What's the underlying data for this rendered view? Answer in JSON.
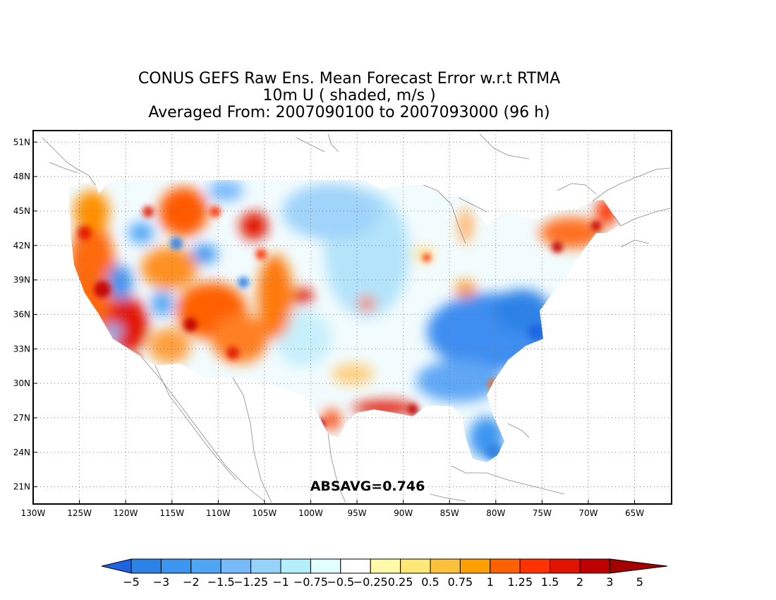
{
  "title": {
    "line1": "CONUS GEFS Raw Ens. Mean Forecast Error w.r.t RTMA",
    "line2": "10m U ( shaded, m/s )",
    "line3": "Averaged From: 2007090100 to 2007093000 (96 h)"
  },
  "map": {
    "lon_range": [
      -130,
      -61
    ],
    "lat_range": [
      19.5,
      52
    ],
    "lon_ticks": [
      "130W",
      "125W",
      "120W",
      "115W",
      "110W",
      "105W",
      "100W",
      "95W",
      "90W",
      "85W",
      "80W",
      "75W",
      "70W",
      "65W"
    ],
    "lat_ticks": [
      "51N",
      "48N",
      "45N",
      "42N",
      "39N",
      "36N",
      "33N",
      "30N",
      "27N",
      "24N",
      "21N"
    ],
    "grid": true,
    "stat_label": "ABSAVG=0.746"
  },
  "colorbar": {
    "colors": [
      "#1e64e1",
      "#2d82e6",
      "#3c96f0",
      "#50a5f5",
      "#78b9fa",
      "#96d2fa",
      "#b4f0fa",
      "#e1ffff",
      "#ffffff",
      "#fffaaa",
      "#ffe878",
      "#ffc03c",
      "#ffa000",
      "#ff6000",
      "#ff3200",
      "#e11400",
      "#c00000",
      "#a50000"
    ],
    "labels": [
      "−5",
      "−3",
      "−2",
      "−1.5",
      "−1.25",
      "−1",
      "−0.75",
      "−0.5",
      "−0.25",
      "0.25",
      "0.5",
      "0.75",
      "1",
      "1.25",
      "1.5",
      "2",
      "3",
      "5"
    ]
  }
}
